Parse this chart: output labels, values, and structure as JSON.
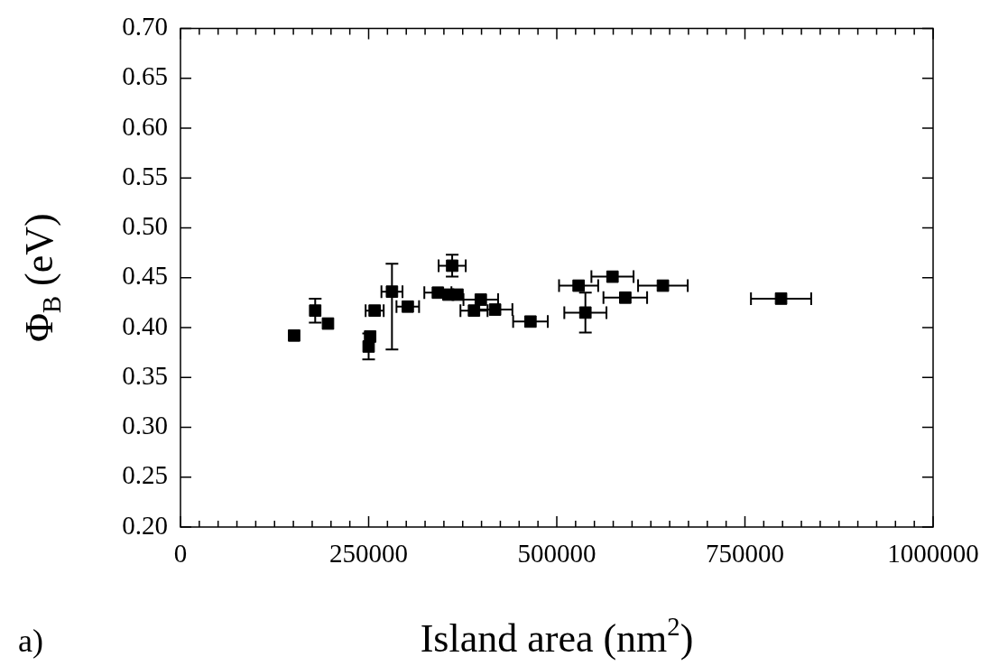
{
  "chart_data": {
    "type": "scatter",
    "xlabel": "Island area (nm$^{2}$)",
    "ylabel": "Φ$_{B}$ (eV)",
    "annotations": [
      "a)"
    ],
    "marker": "square",
    "grid": false,
    "legend": false,
    "xlim": [
      0,
      1000000
    ],
    "ylim": [
      0.2,
      0.7
    ],
    "xticks": [
      0,
      {
        "value": 25000,
        "label": null
      },
      {
        "value": 50000,
        "label": null
      },
      {
        "value": 75000,
        "label": null
      },
      {
        "value": 100000,
        "label": null
      },
      {
        "value": 125000,
        "label": null
      },
      {
        "value": 150000,
        "label": null
      },
      {
        "value": 175000,
        "label": null
      },
      {
        "value": 200000,
        "label": null
      },
      {
        "value": 225000,
        "label": null
      },
      250000,
      {
        "value": 275000,
        "label": null
      },
      {
        "value": 300000,
        "label": null
      },
      {
        "value": 325000,
        "label": null
      },
      {
        "value": 350000,
        "label": null
      },
      {
        "value": 375000,
        "label": null
      },
      {
        "value": 400000,
        "label": null
      },
      {
        "value": 425000,
        "label": null
      },
      {
        "value": 450000,
        "label": null
      },
      {
        "value": 475000,
        "label": null
      },
      500000,
      {
        "value": 525000,
        "label": null
      },
      {
        "value": 550000,
        "label": null
      },
      {
        "value": 575000,
        "label": null
      },
      {
        "value": 600000,
        "label": null
      },
      {
        "value": 625000,
        "label": null
      },
      {
        "value": 650000,
        "label": null
      },
      {
        "value": 675000,
        "label": null
      },
      {
        "value": 700000,
        "label": null
      },
      {
        "value": 725000,
        "label": null
      },
      750000,
      {
        "value": 775000,
        "label": null
      },
      {
        "value": 800000,
        "label": null
      },
      {
        "value": 825000,
        "label": null
      },
      {
        "value": 850000,
        "label": null
      },
      {
        "value": 875000,
        "label": null
      },
      {
        "value": 900000,
        "label": null
      },
      {
        "value": 925000,
        "label": null
      },
      {
        "value": 950000,
        "label": null
      },
      {
        "value": 975000,
        "label": null
      },
      1000000
    ],
    "yticks": [
      {
        "value": 0.2,
        "label": "0.20"
      },
      {
        "value": 0.25,
        "label": "0.25"
      },
      {
        "value": 0.3,
        "label": "0.30"
      },
      {
        "value": 0.35,
        "label": "0.35"
      },
      {
        "value": 0.4,
        "label": "0.40"
      },
      {
        "value": 0.45,
        "label": "0.45"
      },
      {
        "value": 0.5,
        "label": "0.50"
      },
      {
        "value": 0.55,
        "label": "0.55"
      },
      {
        "value": 0.6,
        "label": "0.60"
      },
      {
        "value": 0.65,
        "label": "0.65"
      },
      {
        "value": 0.7,
        "label": "0.70"
      }
    ],
    "series": [
      {
        "color": "#000000",
        "x": [
          151000,
          179000,
          196000,
          250000,
          252000,
          258000,
          281000,
          302000,
          342000,
          356000,
          368000,
          361000,
          399000,
          390000,
          418000,
          465000,
          529000,
          574000,
          538000,
          591000,
          641000,
          798000
        ],
        "values": [
          0.392,
          0.417,
          0.404,
          0.381,
          0.391,
          0.417,
          0.436,
          0.421,
          0.435,
          0.433,
          0.433,
          0.462,
          0.428,
          0.417,
          0.418,
          0.406,
          0.442,
          0.451,
          0.415,
          0.43,
          0.442,
          0.429
        ],
        "errors": [
          null,
          0.012,
          null,
          0.013,
          null,
          null,
          [
            0.378,
            0.464
          ],
          null,
          null,
          null,
          null,
          0.011,
          null,
          null,
          null,
          null,
          null,
          null,
          0.02,
          null,
          null,
          null
        ],
        "xerrors": [
          null,
          null,
          null,
          null,
          null,
          12000,
          14000,
          15000,
          18000,
          null,
          null,
          18000,
          23000,
          18000,
          23000,
          23000,
          26000,
          28000,
          28000,
          29000,
          33000,
          40000
        ]
      }
    ]
  }
}
